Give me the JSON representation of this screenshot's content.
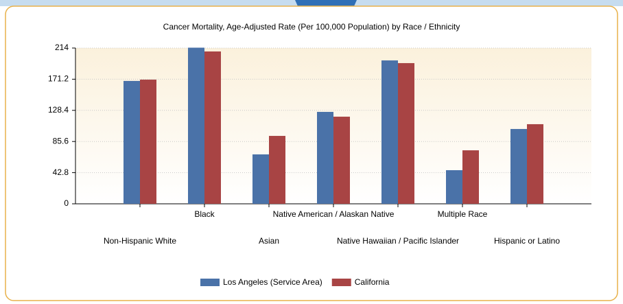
{
  "chart_data": {
    "type": "bar",
    "title": "Cancer Mortality, Age-Adjusted Rate (Per 100,000 Population) by Race / Ethnicity",
    "categories": [
      "Non-Hispanic White",
      "Black",
      "Asian",
      "Native American / Alaskan Native",
      "Native Hawaiian / Pacific Islander",
      "Multiple Race",
      "Hispanic or Latino"
    ],
    "series": [
      {
        "name": "Los Angeles (Service Area)",
        "color": "#4a72a8",
        "values": [
          168.8,
          214.5,
          67.9,
          126.3,
          197.0,
          46.2,
          102.8
        ]
      },
      {
        "name": "California",
        "color": "#a84444",
        "values": [
          170.6,
          209.3,
          93.3,
          119.7,
          193.3,
          73.5,
          109.4
        ]
      }
    ],
    "ylim": [
      0,
      214
    ],
    "yticks": [
      0,
      42.8,
      85.6,
      128.4,
      171.2,
      214
    ],
    "grid": true
  }
}
